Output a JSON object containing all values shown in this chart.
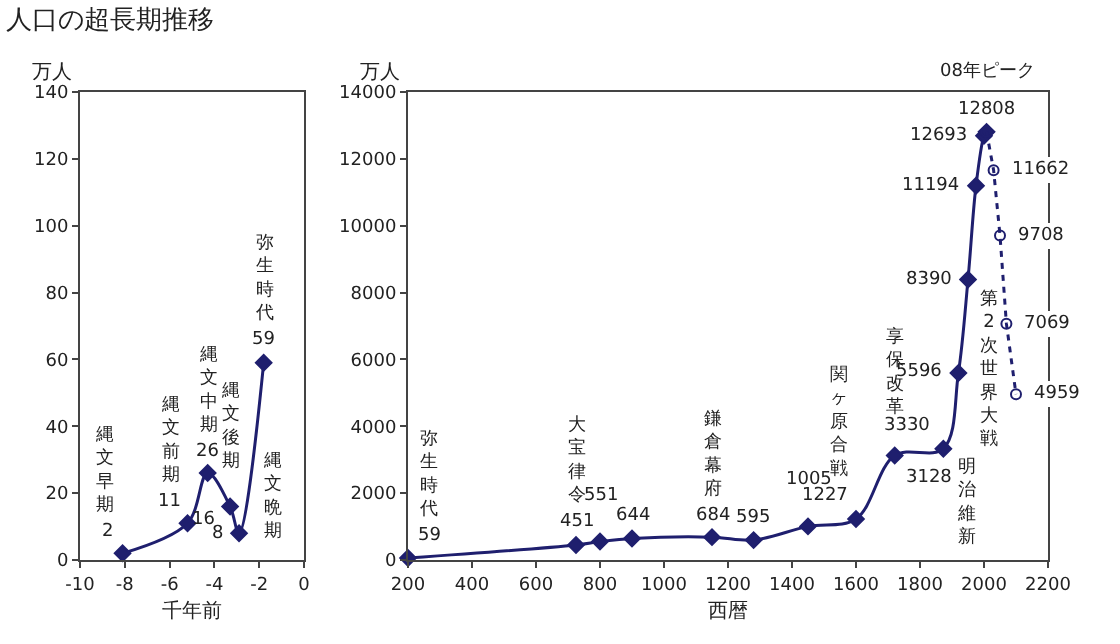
{
  "chart_data": [
    {
      "type": "line",
      "title": "人口の超長期推移",
      "ylabel": "万人",
      "xlabel": "千年前",
      "xlim": [
        -10,
        0
      ],
      "xticks": [
        -10,
        -8,
        -6,
        -4,
        -2,
        0
      ],
      "ylim": [
        0,
        140
      ],
      "yticks": [
        0,
        20,
        40,
        60,
        80,
        100,
        120,
        140
      ],
      "grid": false,
      "marker": "diamond",
      "line_style": "solid",
      "series": [
        {
          "color": "#1f1f6e",
          "x": [
            -8.1,
            -5.2,
            -4.3,
            -3.3,
            -2.9,
            -1.8
          ],
          "values": [
            2,
            11,
            26,
            16,
            8,
            59
          ],
          "value_labels": [
            "2",
            "11",
            "26",
            "16",
            "8",
            "59"
          ]
        }
      ],
      "annotations": [
        {
          "text": "縄文早期",
          "x": -8.1,
          "y": 2
        },
        {
          "text": "縄文前期",
          "x": -5.2,
          "y": 11
        },
        {
          "text": "縄文中期",
          "x": -4.3,
          "y": 26
        },
        {
          "text": "縄文後期",
          "x": -3.3,
          "y": 16
        },
        {
          "text": "縄文晩期",
          "x": -2.9,
          "y": 8
        },
        {
          "text": "弥生時代",
          "x": -1.8,
          "y": 59
        }
      ]
    },
    {
      "type": "line",
      "ylabel": "万人",
      "xlabel": "西暦",
      "xlim": [
        200,
        2200
      ],
      "xticks": [
        200,
        400,
        600,
        800,
        1000,
        1200,
        1400,
        1600,
        1800,
        2000,
        2200
      ],
      "ylim": [
        0,
        14000
      ],
      "yticks": [
        0,
        2000,
        4000,
        6000,
        8000,
        10000,
        12000,
        14000
      ],
      "grid": false,
      "series": [
        {
          "color": "#1f1f6e",
          "marker": "diamond",
          "line_style": "solid",
          "x": [
            200,
            725,
            800,
            900,
            1150,
            1280,
            1450,
            1600,
            1721,
            1873,
            1920,
            1950,
            1975,
            2000,
            2008
          ],
          "values": [
            59,
            451,
            551,
            644,
            684,
            595,
            1005,
            1227,
            3128,
            3330,
            5596,
            8390,
            11194,
            12693,
            12808
          ],
          "value_labels": [
            "59",
            "451",
            "551",
            "644",
            "684",
            "595",
            "1005",
            "1227",
            "3128",
            "3330",
            "5596",
            "8390",
            "11194",
            "12693",
            "12808"
          ]
        },
        {
          "color": "#1f1f6e",
          "marker": "circle",
          "line_style": "dotted",
          "x": [
            2008,
            2030,
            2050,
            2070,
            2100
          ],
          "values": [
            12808,
            11662,
            9708,
            7069,
            4959
          ],
          "value_labels": [
            null,
            "11662",
            "9708",
            "7069",
            "4959"
          ]
        }
      ],
      "annotations": [
        {
          "text": "弥生時代",
          "x": 200,
          "y": 59
        },
        {
          "text": "大宝律令",
          "x": 725,
          "y": 451
        },
        {
          "text": "鎌倉幕府",
          "x": 1150,
          "y": 684
        },
        {
          "text": "関ヶ原合戦",
          "x": 1600,
          "y": 1227
        },
        {
          "text": "享保改革",
          "x": 1721,
          "y": 3128
        },
        {
          "text": "明治維新",
          "x": 1873,
          "y": 3330
        },
        {
          "text": "第2次世界大戦",
          "x": 1950,
          "y": 8390
        },
        {
          "text": "08年ピーク",
          "x": 2008,
          "y": 12808
        }
      ]
    }
  ]
}
